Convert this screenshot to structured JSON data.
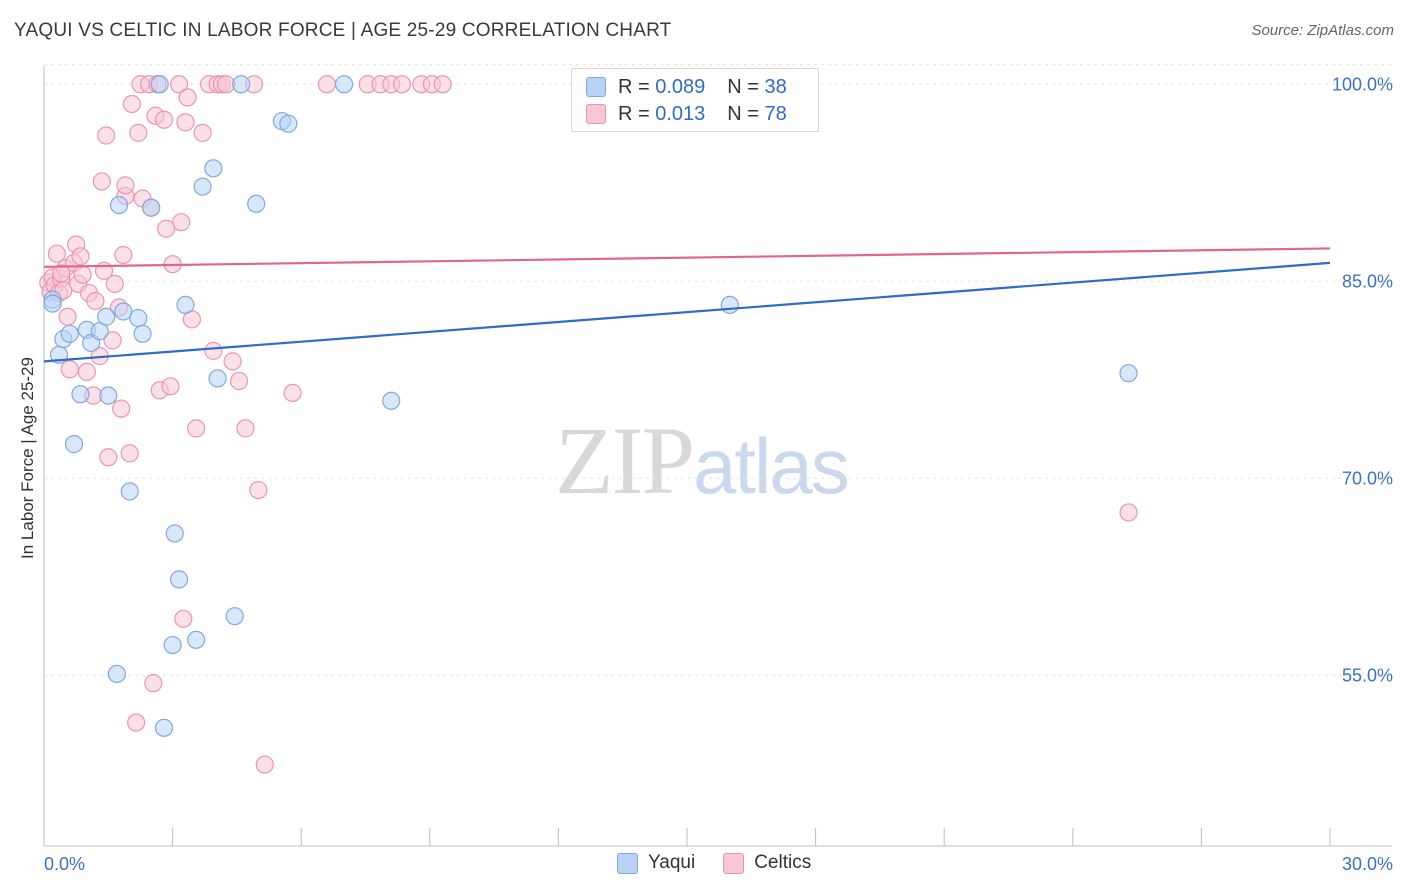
{
  "title": "YAQUI VS CELTIC IN LABOR FORCE | AGE 25-29 CORRELATION CHART",
  "source": "Source: ZipAtlas.com",
  "watermark": {
    "zip": "ZIP",
    "atlas": "atlas"
  },
  "legend": {
    "rows": [
      {
        "r_label": "R =",
        "r_value": "0.089",
        "n_label": "N =",
        "n_value": "38"
      },
      {
        "r_label": "R =",
        "r_value": "0.013",
        "n_label": "N =",
        "n_value": "78"
      }
    ]
  },
  "bottom_legend": [
    "Yaqui",
    "Celtics"
  ],
  "chart_data": {
    "type": "scatter",
    "xlabel": "",
    "ylabel": "In Labor Force | Age 25-29",
    "xlim": [
      0,
      30
    ],
    "ylim": [
      42,
      102
    ],
    "x_tick_labels": [
      {
        "value": 0,
        "label": "0.0%"
      },
      {
        "value": 30,
        "label": "30.0%"
      }
    ],
    "y_tick_labels": [
      {
        "value": 100,
        "label": "100.0%"
      },
      {
        "value": 85,
        "label": "85.0%"
      },
      {
        "value": 70,
        "label": "70.0%"
      },
      {
        "value": 55,
        "label": "55.0%"
      }
    ],
    "colors": {
      "yaqui": "#2f6bc9",
      "celtics": "#e0658f",
      "yaqui_fill": "#b8d3f5",
      "celtics_fill": "#f9c6d6"
    },
    "series": [
      {
        "name": "Yaqui",
        "trend": [
          [
            0,
            78.9
          ],
          [
            30,
            86.4
          ]
        ],
        "points": [
          [
            0.2,
            83.6
          ],
          [
            0.2,
            83.3
          ],
          [
            0.35,
            79.4
          ],
          [
            0.45,
            80.6
          ],
          [
            0.6,
            81.0
          ],
          [
            0.7,
            72.6
          ],
          [
            0.85,
            76.4
          ],
          [
            1.0,
            81.3
          ],
          [
            1.1,
            80.3
          ],
          [
            1.3,
            81.2
          ],
          [
            1.45,
            82.3
          ],
          [
            1.5,
            76.3
          ],
          [
            1.7,
            55.1
          ],
          [
            1.75,
            90.8
          ],
          [
            1.85,
            82.7
          ],
          [
            2.0,
            69.0
          ],
          [
            2.2,
            82.2
          ],
          [
            2.3,
            81.0
          ],
          [
            2.5,
            90.6
          ],
          [
            2.7,
            100.0
          ],
          [
            2.8,
            51.0
          ],
          [
            3.0,
            57.3
          ],
          [
            3.05,
            65.8
          ],
          [
            3.15,
            62.3
          ],
          [
            3.3,
            83.2
          ],
          [
            3.55,
            57.7
          ],
          [
            3.7,
            92.2
          ],
          [
            3.95,
            93.6
          ],
          [
            4.05,
            77.6
          ],
          [
            4.45,
            59.5
          ],
          [
            4.6,
            100.0
          ],
          [
            4.95,
            90.9
          ],
          [
            5.55,
            97.2
          ],
          [
            5.7,
            97.0
          ],
          [
            7.0,
            100.0
          ],
          [
            8.1,
            75.9
          ],
          [
            16.0,
            83.2
          ],
          [
            25.3,
            78.0
          ]
        ]
      },
      {
        "name": "Celtics",
        "trend": [
          [
            0,
            86.1
          ],
          [
            30,
            87.5
          ]
        ],
        "points": [
          [
            0.1,
            84.9
          ],
          [
            0.15,
            84.2
          ],
          [
            0.2,
            85.3
          ],
          [
            0.25,
            84.7
          ],
          [
            0.3,
            87.1
          ],
          [
            0.35,
            84.1
          ],
          [
            0.4,
            85.2
          ],
          [
            0.45,
            84.3
          ],
          [
            0.5,
            86.0
          ],
          [
            0.55,
            82.3
          ],
          [
            0.6,
            78.3
          ],
          [
            0.7,
            86.4
          ],
          [
            0.75,
            87.8
          ],
          [
            0.8,
            84.8
          ],
          [
            0.85,
            86.9
          ],
          [
            0.9,
            85.5
          ],
          [
            1.0,
            78.1
          ],
          [
            1.05,
            84.1
          ],
          [
            1.15,
            76.3
          ],
          [
            1.2,
            83.5
          ],
          [
            1.3,
            79.3
          ],
          [
            1.35,
            92.6
          ],
          [
            1.4,
            85.8
          ],
          [
            1.45,
            96.1
          ],
          [
            1.5,
            71.6
          ],
          [
            1.6,
            80.5
          ],
          [
            1.65,
            84.8
          ],
          [
            1.75,
            83.0
          ],
          [
            1.8,
            75.3
          ],
          [
            1.85,
            87.0
          ],
          [
            1.9,
            91.5
          ],
          [
            2.0,
            71.9
          ],
          [
            2.05,
            98.5
          ],
          [
            2.15,
            51.4
          ],
          [
            2.2,
            96.3
          ],
          [
            2.25,
            100.0
          ],
          [
            2.3,
            91.3
          ],
          [
            2.45,
            100.0
          ],
          [
            2.5,
            90.6
          ],
          [
            2.55,
            54.4
          ],
          [
            2.6,
            97.6
          ],
          [
            2.65,
            100.0
          ],
          [
            2.7,
            76.7
          ],
          [
            2.8,
            97.3
          ],
          [
            2.85,
            89.0
          ],
          [
            2.95,
            77.0
          ],
          [
            3.0,
            86.3
          ],
          [
            3.15,
            100.0
          ],
          [
            3.2,
            89.5
          ],
          [
            3.25,
            59.3
          ],
          [
            3.3,
            97.1
          ],
          [
            3.35,
            99.0
          ],
          [
            3.45,
            82.1
          ],
          [
            3.55,
            73.8
          ],
          [
            3.7,
            96.3
          ],
          [
            3.85,
            100.0
          ],
          [
            3.95,
            79.7
          ],
          [
            4.05,
            100.0
          ],
          [
            4.15,
            100.0
          ],
          [
            4.25,
            100.0
          ],
          [
            4.4,
            78.9
          ],
          [
            4.55,
            77.4
          ],
          [
            4.7,
            73.8
          ],
          [
            4.9,
            100.0
          ],
          [
            5.0,
            69.1
          ],
          [
            5.15,
            48.2
          ],
          [
            5.8,
            76.5
          ],
          [
            6.6,
            100.0
          ],
          [
            7.55,
            100.0
          ],
          [
            7.85,
            100.0
          ],
          [
            8.1,
            100.0
          ],
          [
            8.35,
            100.0
          ],
          [
            8.8,
            100.0
          ],
          [
            9.05,
            100.0
          ],
          [
            9.3,
            100.0
          ],
          [
            25.3,
            67.4
          ],
          [
            0.4,
            85.6
          ],
          [
            1.9,
            92.3
          ]
        ]
      }
    ]
  }
}
